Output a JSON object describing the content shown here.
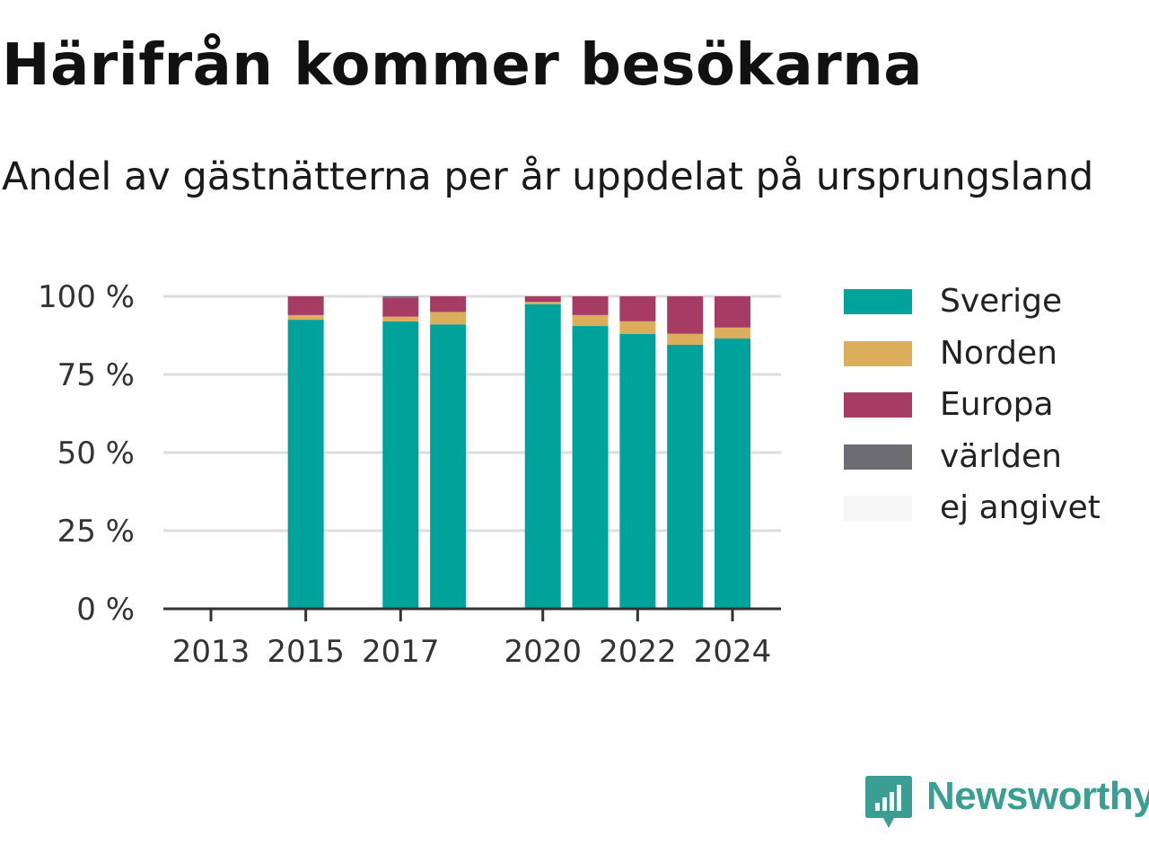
{
  "title": "Härifrån kommer besökarna",
  "subtitle": "Andel av gästnätterna per år uppdelat på ursprungsland",
  "brand": {
    "name": "Newsworthy"
  },
  "chart_data": {
    "type": "bar",
    "stacked": true,
    "grid": true,
    "legend_position": "right",
    "ylim": [
      0,
      100
    ],
    "y_ticks": [
      0,
      25,
      50,
      75,
      100
    ],
    "y_tick_labels": [
      "0 %",
      "25 %",
      "50 %",
      "75 %",
      "100 %"
    ],
    "x_range": [
      2013,
      2024
    ],
    "x_ticks": [
      2013,
      2015,
      2017,
      2020,
      2022,
      2024
    ],
    "x_tick_labels": [
      "2013",
      "2015",
      "2017",
      "2020",
      "2022",
      "2024"
    ],
    "x": [
      2015,
      2017,
      2018,
      2020,
      2021,
      2022,
      2023,
      2024
    ],
    "series": [
      {
        "name": "Sverige",
        "color": "#00a39b",
        "values": [
          92.5,
          92.0,
          91.0,
          97.5,
          90.5,
          88.0,
          84.5,
          86.5
        ]
      },
      {
        "name": "Norden",
        "color": "#dcae5c",
        "values": [
          1.5,
          1.5,
          4.0,
          0.7,
          3.5,
          4.0,
          3.5,
          3.5
        ]
      },
      {
        "name": "Europa",
        "color": "#a63c64",
        "values": [
          6.0,
          6.0,
          5.0,
          1.8,
          6.0,
          8.0,
          12.0,
          10.0
        ]
      },
      {
        "name": "världen",
        "color": "#6d6c74",
        "values": [
          0,
          0.5,
          0,
          0,
          0,
          0,
          0,
          0
        ]
      },
      {
        "name": "ej angivet",
        "color": "#f5f5f5",
        "values": [
          0,
          0,
          0,
          0,
          0,
          0,
          0,
          0
        ]
      }
    ]
  }
}
